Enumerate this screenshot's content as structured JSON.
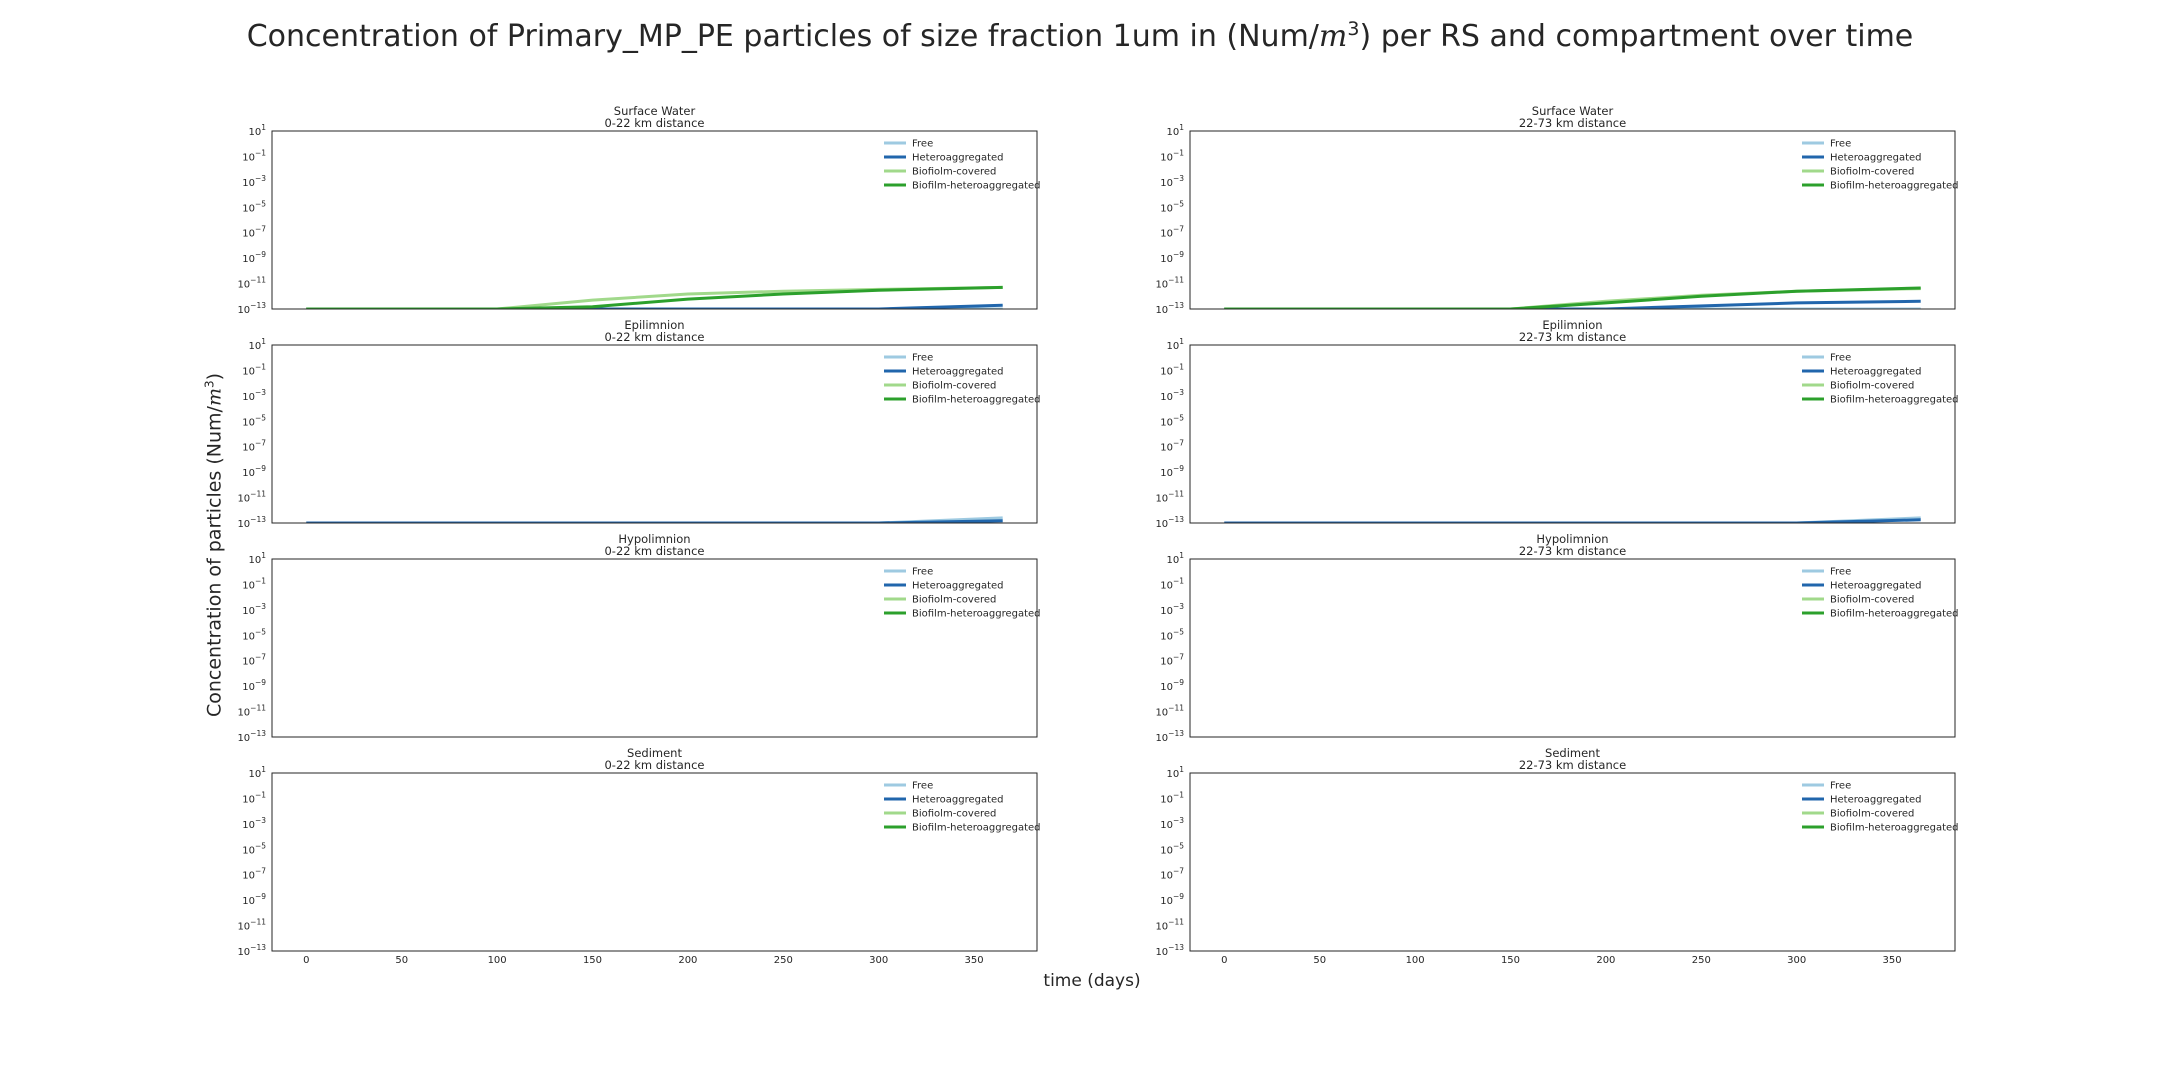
{
  "title": "Concentration of Primary_MP_PE particles of size fraction 1um in (Num/m3) per RS and compartment over time",
  "title_parts": {
    "pre": "Concentration of Primary_MP_PE particles of size fraction 1um in (Num/",
    "m": "m",
    "exp": "3",
    "post": ") per RS and compartment over time"
  },
  "ylabel_parts": {
    "pre": "Concentration of particles (Num/",
    "m": "m",
    "exp": "3",
    "post": ")"
  },
  "xlabel": "time (days)",
  "legend_labels": [
    "Free",
    "Heteroaggregated",
    "Biofiolm-covered",
    "Biofilm-heteroaggregated"
  ],
  "colors": {
    "Free": "#9ecae1",
    "Heteroaggregated": "#2166ac",
    "Biofiolm-covered": "#a1d98b",
    "Biofilm-heteroaggregated": "#2ca02c"
  },
  "chart_data": {
    "type": "line",
    "x_ticks": [
      0,
      50,
      100,
      150,
      200,
      250,
      300,
      350
    ],
    "xlim": [
      -18,
      383
    ],
    "y_scale": "log",
    "ylim_exponent": [
      -13,
      1
    ],
    "y_tick_exponents": [
      1,
      -1,
      -3,
      -5,
      -7,
      -9,
      -11,
      -13
    ],
    "legend_position": "upper right",
    "grid": false,
    "panels": [
      {
        "compartment": "Surface Water",
        "distance": "0-22 km distance",
        "series": [
          {
            "name": "Free",
            "x": [
              0,
              100,
              200,
              300,
              365
            ],
            "y": [
              1e-14,
              3e-14,
              6e-14,
              8e-14,
              9e-14
            ]
          },
          {
            "name": "Heteroaggregated",
            "x": [
              0,
              100,
              200,
              300,
              365
            ],
            "y": [
              1e-15,
              1e-14,
              4e-14,
              1e-13,
              2e-13
            ]
          },
          {
            "name": "Biofiolm-covered",
            "x": [
              0,
              50,
              100,
              150,
              200,
              250,
              300,
              365
            ],
            "y": [
              1e-16,
              1e-14,
              1e-13,
              5e-13,
              1.5e-12,
              2.5e-12,
              3.5e-12,
              5e-12
            ]
          },
          {
            "name": "Biofilm-heteroaggregated",
            "x": [
              0,
              50,
              100,
              150,
              200,
              250,
              300,
              365
            ],
            "y": [
              1e-16,
              1e-15,
              2e-14,
              1.5e-13,
              6e-13,
              1.5e-12,
              3e-12,
              5e-12
            ]
          }
        ]
      },
      {
        "compartment": "Surface Water",
        "distance": "22-73 km distance",
        "series": [
          {
            "name": "Free",
            "x": [
              0,
              100,
              200,
              300,
              365
            ],
            "y": [
              1e-14,
              3e-14,
              6e-14,
              9e-14,
              1e-13
            ]
          },
          {
            "name": "Heteroaggregated",
            "x": [
              0,
              100,
              200,
              300,
              365
            ],
            "y": [
              1e-15,
              2e-14,
              1e-13,
              3e-13,
              4e-13
            ]
          },
          {
            "name": "Biofiolm-covered",
            "x": [
              0,
              50,
              100,
              150,
              200,
              250,
              300,
              365
            ],
            "y": [
              1e-16,
              1e-15,
              1e-14,
              1e-13,
              4e-13,
              1.2e-12,
              2.5e-12,
              4e-12
            ]
          },
          {
            "name": "Biofilm-heteroaggregated",
            "x": [
              0,
              50,
              100,
              150,
              200,
              250,
              300,
              365
            ],
            "y": [
              1e-16,
              1e-15,
              1e-14,
              6e-14,
              3e-13,
              1e-12,
              2.5e-12,
              4.5e-12
            ]
          }
        ]
      },
      {
        "compartment": "Epilimnion",
        "distance": "0-22 km distance",
        "series": [
          {
            "name": "Free",
            "x": [
              0,
              100,
              200,
              250,
              300,
              365
            ],
            "y": [
              1e-16,
              1e-15,
              1e-14,
              3e-14,
              1e-13,
              2.5e-13
            ]
          },
          {
            "name": "Heteroaggregated",
            "x": [
              0,
              100,
              200,
              250,
              300,
              365
            ],
            "y": [
              1e-16,
              1e-15,
              1e-14,
              3e-14,
              8e-14,
              1.5e-13
            ]
          }
        ]
      },
      {
        "compartment": "Epilimnion",
        "distance": "22-73 km distance",
        "series": [
          {
            "name": "Free",
            "x": [
              0,
              100,
              200,
              250,
              300,
              365
            ],
            "y": [
              1e-16,
              1e-15,
              1e-14,
              3e-14,
              1e-13,
              2.5e-13
            ]
          },
          {
            "name": "Heteroaggregated",
            "x": [
              0,
              100,
              200,
              250,
              300,
              365
            ],
            "y": [
              1e-16,
              1e-15,
              1e-14,
              3e-14,
              8e-14,
              1.8e-13
            ]
          }
        ]
      },
      {
        "compartment": "Hypolimnion",
        "distance": "0-22 km distance",
        "series": []
      },
      {
        "compartment": "Hypolimnion",
        "distance": "22-73 km distance",
        "series": []
      },
      {
        "compartment": "Sediment",
        "distance": "0-22 km distance",
        "series": []
      },
      {
        "compartment": "Sediment",
        "distance": "22-73 km distance",
        "series": []
      }
    ]
  }
}
